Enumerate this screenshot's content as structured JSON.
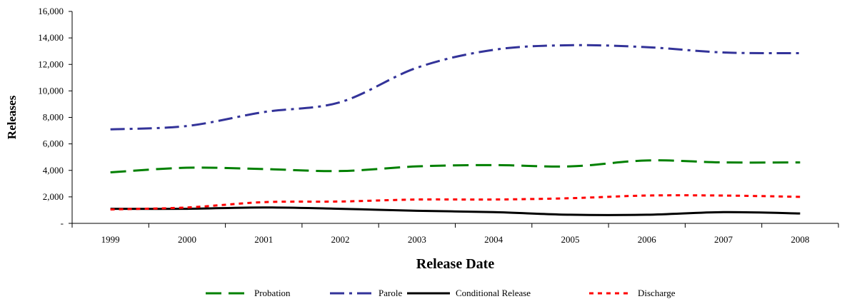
{
  "chart_data": {
    "type": "line",
    "xlabel": "Release Date",
    "ylabel": "Releases",
    "categories": [
      "1999",
      "2000",
      "2001",
      "2002",
      "2003",
      "2004",
      "2005",
      "2006",
      "2007",
      "2008"
    ],
    "ylim": [
      0,
      16000
    ],
    "yticks": [
      0,
      2000,
      4000,
      6000,
      8000,
      10000,
      12000,
      14000,
      16000
    ],
    "ytick_labels": [
      "-",
      "2,000",
      "4,000",
      "6,000",
      "8,000",
      "10,000",
      "12,000",
      "14,000",
      "16,000"
    ],
    "grid": false,
    "legend_position": "bottom",
    "series": [
      {
        "name": "Probation",
        "color": "#008000",
        "dash": "long-dash",
        "values": [
          3850,
          4200,
          4100,
          3950,
          4300,
          4400,
          4300,
          4750,
          4600,
          4600
        ]
      },
      {
        "name": "Parole",
        "color": "#333399",
        "dash": "dash-dot",
        "values": [
          7100,
          7350,
          8400,
          9150,
          11750,
          13100,
          13450,
          13300,
          12900,
          12850
        ]
      },
      {
        "name": "Conditional Release",
        "color": "#000000",
        "dash": "solid",
        "values": [
          1100,
          1100,
          1200,
          1100,
          950,
          850,
          650,
          650,
          850,
          750
        ]
      },
      {
        "name": "Discharge",
        "color": "#ff0000",
        "dash": "dotted",
        "values": [
          1050,
          1200,
          1600,
          1650,
          1800,
          1800,
          1900,
          2100,
          2100,
          2000
        ]
      }
    ]
  }
}
